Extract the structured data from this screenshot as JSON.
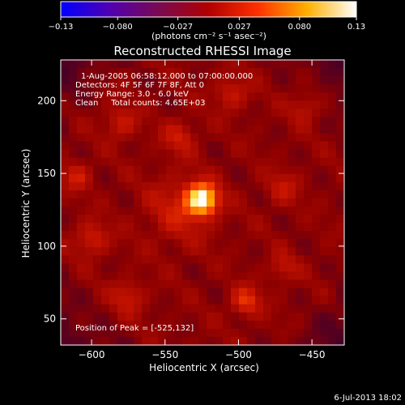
{
  "chart_data": {
    "type": "heatmap",
    "title": "Reconstructed RHESSI Image",
    "xlabel": "Heliocentric X (arcsec)",
    "ylabel": "Heliocentric Y (arcsec)",
    "xlim": [
      -621,
      -428
    ],
    "ylim": [
      32,
      228
    ],
    "x_ticks": [
      -600,
      -550,
      -500,
      -450
    ],
    "y_ticks": [
      50,
      100,
      150,
      200
    ],
    "x_tick_labels": [
      "−600",
      "−550",
      "−500",
      "−450"
    ],
    "y_tick_labels": [
      "50",
      "100",
      "150",
      "200"
    ],
    "colorbar": {
      "label": "(photons cm⁻² s⁻¹ asec⁻²)",
      "ticks": [
        -0.13,
        -0.08,
        -0.027,
        0.027,
        0.08,
        0.13
      ],
      "tick_labels": [
        "−0.13",
        "−0.080",
        "−0.027",
        "0.027",
        "0.080",
        "0.13"
      ],
      "range": [
        -0.13,
        0.13
      ],
      "colors": [
        "#0000ff",
        "#5000b0",
        "#7a0a50",
        "#b00000",
        "#ff3000",
        "#ffb000",
        "#ffffff"
      ]
    },
    "annotations": [
      "1-Aug-2005 06:58:12.000 to 07:00:00.000",
      "Detectors: 4F 5F 6F 7F 8F, Att 0",
      "Energy Range: 3.0 - 6.0 keV",
      "Clean     Total counts: 4.65E+03"
    ],
    "peak_label": "Position of Peak = [-525,132]",
    "peak": {
      "x": -525,
      "y": 132,
      "value": 0.13
    },
    "sources": [
      {
        "x": -525,
        "y": 132,
        "amp": 0.13,
        "sigma": 7
      },
      {
        "x": -540,
        "y": 125,
        "amp": 0.03,
        "sigma": 16
      },
      {
        "x": -495,
        "y": 62,
        "amp": 0.045,
        "sigma": 7
      },
      {
        "x": -600,
        "y": 105,
        "amp": 0.035,
        "sigma": 8
      },
      {
        "x": -610,
        "y": 148,
        "amp": 0.03,
        "sigma": 7
      },
      {
        "x": -580,
        "y": 185,
        "amp": 0.03,
        "sigma": 8
      },
      {
        "x": -540,
        "y": 175,
        "amp": 0.03,
        "sigma": 8
      },
      {
        "x": -470,
        "y": 140,
        "amp": 0.025,
        "sigma": 8
      },
      {
        "x": -455,
        "y": 195,
        "amp": 0.025,
        "sigma": 7
      },
      {
        "x": -575,
        "y": 65,
        "amp": 0.03,
        "sigma": 8
      },
      {
        "x": -470,
        "y": 85,
        "amp": 0.025,
        "sigma": 7
      },
      {
        "x": -505,
        "y": 205,
        "amp": 0.03,
        "sigma": 8
      }
    ]
  },
  "footer": {
    "timestamp": "6-Jul-2013 18:02"
  }
}
